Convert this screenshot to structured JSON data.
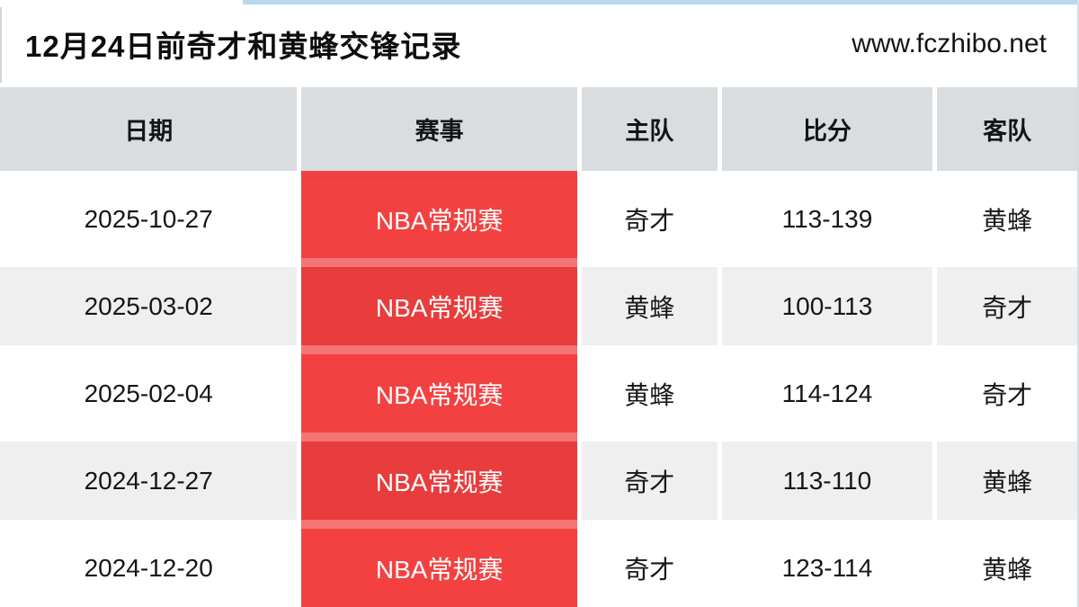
{
  "page": {
    "title": "12月24日前奇才和黄蜂交锋记录",
    "site": "www.fczhibo.net"
  },
  "table": {
    "columns": [
      "日期",
      "赛事",
      "主队",
      "比分",
      "客队"
    ],
    "rows": [
      {
        "date": "2025-10-27",
        "event": "NBA常规赛",
        "home": "奇才",
        "score": "113-139",
        "away": "黄蜂"
      },
      {
        "date": "2025-03-02",
        "event": "NBA常规赛",
        "home": "黄蜂",
        "score": "100-113",
        "away": "奇才"
      },
      {
        "date": "2025-02-04",
        "event": "NBA常规赛",
        "home": "黄蜂",
        "score": "114-124",
        "away": "奇才"
      },
      {
        "date": "2024-12-27",
        "event": "NBA常规赛",
        "home": "奇才",
        "score": "113-110",
        "away": "黄蜂"
      },
      {
        "date": "2024-12-20",
        "event": "NBA常规赛",
        "home": "奇才",
        "score": "123-114",
        "away": "黄蜂"
      }
    ]
  },
  "colors": {
    "accent_red": "#f34141",
    "accent_red_dark": "#e93c3c",
    "header_bg": "#d9dde0",
    "row_alt_bg": "#efefef",
    "top_strip_blue": "#b8d8f0"
  }
}
